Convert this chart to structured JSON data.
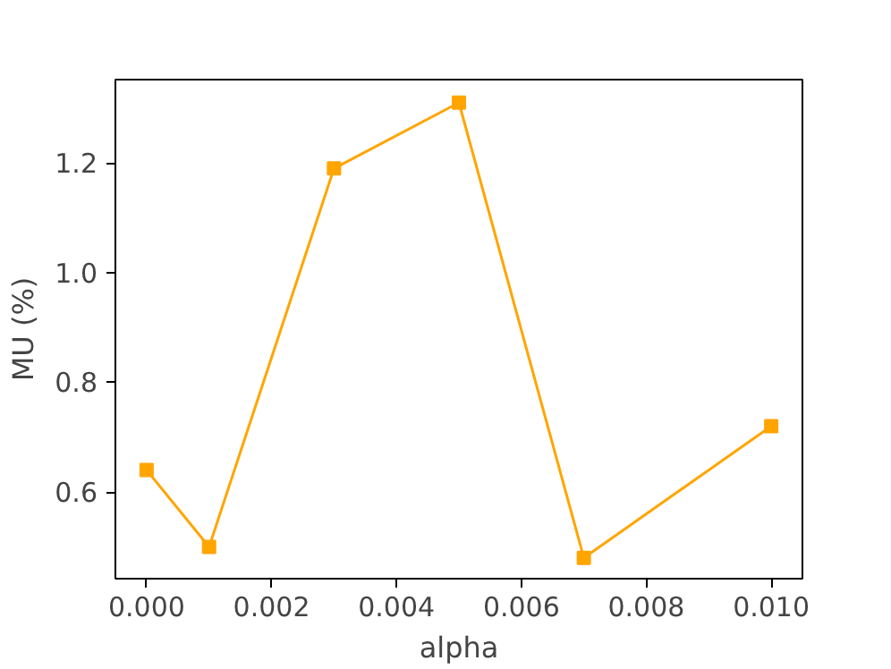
{
  "chart_data": {
    "type": "line",
    "xlabel": "alpha",
    "ylabel": "MU (%)",
    "x": [
      0.0,
      0.001,
      0.003,
      0.005,
      0.007,
      0.01
    ],
    "series": [
      {
        "color": "#ffa500",
        "values": [
          0.64,
          0.5,
          1.19,
          1.31,
          0.48,
          0.72
        ]
      }
    ],
    "xlim": [
      -0.0005,
      0.0105
    ],
    "ylim": [
      0.442,
      1.352
    ],
    "xticks": [
      {
        "value": 0,
        "label": "0.000"
      },
      {
        "value": 0.002,
        "label": "0.002"
      },
      {
        "value": 0.004,
        "label": "0.004"
      },
      {
        "value": 0.006,
        "label": "0.006"
      },
      {
        "value": 0.008,
        "label": "0.008"
      },
      {
        "value": 0.01,
        "label": "0.010"
      }
    ],
    "yticks": [
      {
        "value": 0.6,
        "label": "0.6"
      },
      {
        "value": 0.8,
        "label": "0.8"
      },
      {
        "value": 1.0,
        "label": "1.0"
      },
      {
        "value": 1.2,
        "label": "1.2"
      }
    ],
    "grid": false,
    "marker": "square",
    "line_style": "solid"
  }
}
